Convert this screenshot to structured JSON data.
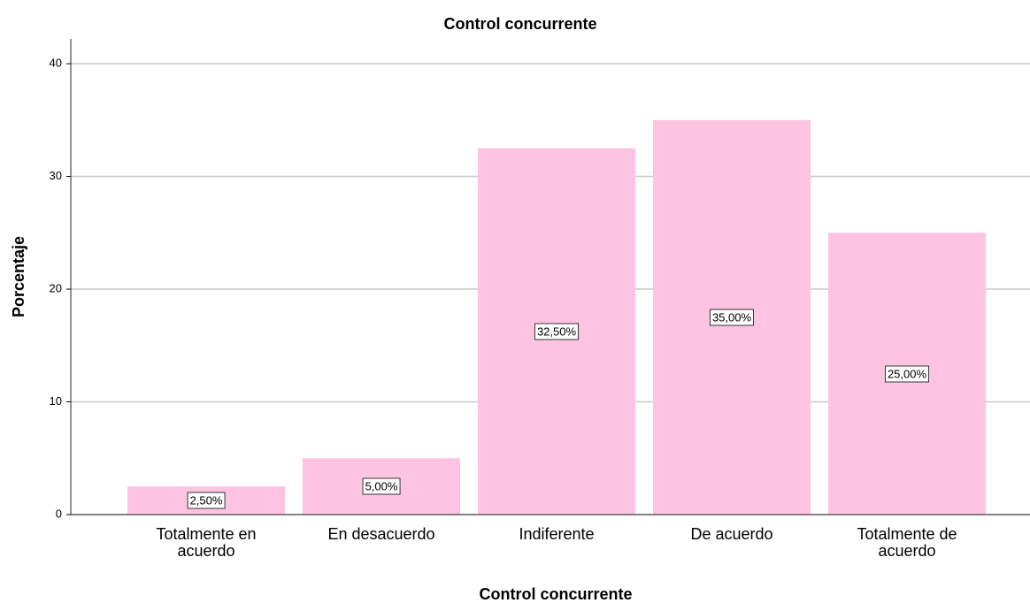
{
  "chart_data": {
    "type": "bar",
    "title": "Control concurrente",
    "x_label": "Control concurrente",
    "y_label": "Porcentaje",
    "categories": [
      "Totalmente en acuerdo",
      "En desacuerdo",
      "Indiferente",
      "De acuerdo",
      "Totalmente de acuerdo"
    ],
    "values": [
      2.5,
      5,
      32.5,
      35,
      25
    ],
    "value_labels": [
      "2,50%",
      "5,00%",
      "32,50%",
      "35,00%",
      "25,00%"
    ],
    "color": "#fdc3e1",
    "ylim": [
      0,
      42.2
    ],
    "yticks": [
      0,
      10,
      20,
      30,
      40
    ],
    "grid": true
  }
}
